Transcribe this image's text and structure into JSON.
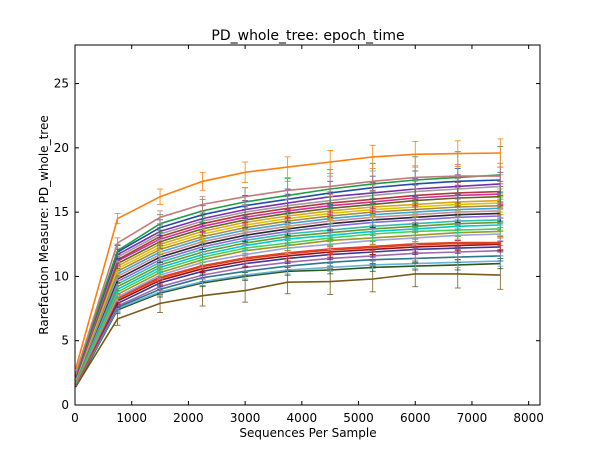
{
  "chart_data": {
    "type": "line",
    "title": "PD_whole_tree: epoch_time",
    "xlabel": "Sequences Per Sample",
    "ylabel": "Rarefaction Measure: PD_whole_tree",
    "xlim": [
      0,
      8200
    ],
    "ylim": [
      0,
      28
    ],
    "x_ticks": [
      0,
      1000,
      2000,
      3000,
      4000,
      5000,
      6000,
      7000,
      8000
    ],
    "y_ticks": [
      0,
      5,
      10,
      15,
      20,
      25
    ],
    "x_tick_labels": [
      "0",
      "1000",
      "2000",
      "3000",
      "4000",
      "5000",
      "6000",
      "7000",
      "8000"
    ],
    "y_tick_labels": [
      "0",
      "5",
      "10",
      "15",
      "20",
      "25"
    ],
    "grid": false,
    "legend": "none",
    "x": [
      10,
      750,
      1500,
      2250,
      3000,
      3750,
      4500,
      5250,
      6000,
      6750,
      7500
    ],
    "error_bars": true,
    "series": [
      {
        "color": "#ff7f0e",
        "width": 1.6,
        "values": [
          2.8,
          14.5,
          16.2,
          17.4,
          18.1,
          18.5,
          18.9,
          19.3,
          19.5,
          19.55,
          19.6
        ],
        "err": [
          0.3,
          0.4,
          0.6,
          0.7,
          0.8,
          0.8,
          0.9,
          0.9,
          1.0,
          1.0,
          1.1
        ]
      },
      {
        "color": "#c47a7a",
        "width": 1.6,
        "values": [
          2.4,
          12.6,
          14.6,
          15.6,
          16.2,
          16.7,
          17.0,
          17.4,
          17.7,
          17.8,
          17.8
        ],
        "err": [
          0.3,
          0.4,
          0.5,
          0.6,
          0.7,
          0.7,
          0.8,
          0.8,
          0.9,
          0.9,
          1.0
        ]
      },
      {
        "color": "#1f9e3f",
        "width": 1.6,
        "values": [
          2.3,
          12.0,
          14.1,
          15.1,
          15.8,
          16.3,
          16.8,
          17.2,
          17.5,
          17.7,
          17.9
        ],
        "err": [
          0.3,
          0.5,
          0.7,
          0.9,
          1.1,
          1.3,
          1.5,
          1.6,
          1.8,
          2.0,
          2.2
        ]
      },
      {
        "color": "#1f4ea8",
        "width": 1.6,
        "values": [
          2.3,
          11.9,
          13.8,
          14.8,
          15.5,
          16.0,
          16.5,
          16.9,
          17.2,
          17.4,
          17.5
        ],
        "err": [
          0.3,
          0.5,
          0.6,
          0.7,
          0.8,
          0.8,
          0.9,
          0.9,
          1.0,
          1.0,
          1.0
        ]
      },
      {
        "color": "#7a2fb0",
        "width": 1.6,
        "values": [
          2.2,
          11.7,
          13.5,
          14.5,
          15.2,
          15.7,
          16.2,
          16.5,
          16.8,
          17.0,
          17.2
        ],
        "err": [
          0.3,
          0.4,
          0.5,
          0.6,
          0.7,
          0.7,
          0.8,
          0.8,
          0.8,
          0.9,
          0.9
        ]
      },
      {
        "color": "#9e9e9e",
        "width": 1.6,
        "values": [
          2.2,
          11.5,
          13.3,
          14.3,
          15.0,
          15.5,
          15.9,
          16.3,
          16.6,
          16.8,
          17.0
        ],
        "err": [
          0.3,
          0.4,
          0.5,
          0.6,
          0.6,
          0.7,
          0.7,
          0.8,
          0.8,
          0.8,
          0.9
        ]
      },
      {
        "color": "#b03a3a",
        "width": 1.6,
        "values": [
          2.2,
          11.3,
          13.1,
          14.1,
          14.8,
          15.3,
          15.7,
          16.0,
          16.3,
          16.5,
          16.6
        ],
        "err": [
          0.3,
          0.4,
          0.5,
          0.6,
          0.6,
          0.7,
          0.7,
          0.7,
          0.8,
          0.8,
          0.8
        ]
      },
      {
        "color": "#d62ca0",
        "width": 1.6,
        "values": [
          2.1,
          11.2,
          12.9,
          13.9,
          14.6,
          15.1,
          15.5,
          15.8,
          16.1,
          16.3,
          16.4
        ],
        "err": [
          0.3,
          0.4,
          0.5,
          0.5,
          0.6,
          0.6,
          0.7,
          0.7,
          0.7,
          0.8,
          0.8
        ]
      },
      {
        "color": "#5a6a1a",
        "width": 1.6,
        "values": [
          2.1,
          11.0,
          12.7,
          13.7,
          14.4,
          14.9,
          15.3,
          15.6,
          15.9,
          16.1,
          16.2
        ],
        "err": [
          0.3,
          0.4,
          0.5,
          0.5,
          0.6,
          0.6,
          0.6,
          0.7,
          0.7,
          0.7,
          0.8
        ]
      },
      {
        "color": "#e0a020",
        "width": 1.6,
        "values": [
          2.1,
          10.8,
          12.5,
          13.5,
          14.2,
          14.7,
          15.1,
          15.4,
          15.6,
          15.8,
          15.9
        ],
        "err": [
          0.3,
          0.4,
          0.4,
          0.5,
          0.6,
          0.6,
          0.6,
          0.7,
          0.7,
          0.7,
          0.7
        ]
      },
      {
        "color": "#d9c600",
        "width": 1.6,
        "values": [
          2.0,
          10.6,
          12.3,
          13.3,
          14.0,
          14.5,
          14.9,
          15.2,
          15.4,
          15.6,
          15.7
        ],
        "err": [
          0.3,
          0.4,
          0.4,
          0.5,
          0.5,
          0.6,
          0.6,
          0.6,
          0.7,
          0.7,
          0.7
        ]
      },
      {
        "color": "#b08a3a",
        "width": 1.6,
        "values": [
          2.0,
          10.4,
          12.1,
          13.1,
          13.8,
          14.3,
          14.7,
          15.0,
          15.2,
          15.4,
          15.5
        ],
        "err": [
          0.3,
          0.4,
          0.4,
          0.5,
          0.5,
          0.6,
          0.6,
          0.6,
          0.6,
          0.7,
          0.7
        ]
      },
      {
        "color": "#3aa8d9",
        "width": 1.6,
        "values": [
          2.0,
          10.2,
          11.9,
          12.9,
          13.6,
          14.1,
          14.5,
          14.8,
          15.0,
          15.2,
          15.3
        ],
        "err": [
          0.3,
          0.3,
          0.4,
          0.5,
          0.5,
          0.5,
          0.6,
          0.6,
          0.6,
          0.6,
          0.7
        ]
      },
      {
        "color": "#c78a9e",
        "width": 1.6,
        "values": [
          1.9,
          10.0,
          11.7,
          12.7,
          13.4,
          13.9,
          14.3,
          14.6,
          14.8,
          15.0,
          15.1
        ],
        "err": [
          0.3,
          0.3,
          0.4,
          0.4,
          0.5,
          0.5,
          0.6,
          0.6,
          0.6,
          0.6,
          0.6
        ]
      },
      {
        "color": "#2a2a2a",
        "width": 1.6,
        "values": [
          1.9,
          9.8,
          11.5,
          12.5,
          13.2,
          13.7,
          14.1,
          14.4,
          14.6,
          14.8,
          14.9
        ],
        "err": [
          0.3,
          0.3,
          0.4,
          0.4,
          0.5,
          0.5,
          0.5,
          0.6,
          0.6,
          0.6,
          0.6
        ]
      },
      {
        "color": "#8a6ad9",
        "width": 1.6,
        "values": [
          1.9,
          9.6,
          11.3,
          12.3,
          13.0,
          13.5,
          13.9,
          14.2,
          14.4,
          14.6,
          14.7
        ],
        "err": [
          0.3,
          0.3,
          0.4,
          0.4,
          0.5,
          0.5,
          0.5,
          0.5,
          0.6,
          0.6,
          0.6
        ]
      },
      {
        "color": "#2fc0b0",
        "width": 1.6,
        "values": [
          1.8,
          9.4,
          11.1,
          12.1,
          12.8,
          13.3,
          13.6,
          13.9,
          14.1,
          14.3,
          14.4
        ],
        "err": [
          0.3,
          0.3,
          0.4,
          0.4,
          0.4,
          0.5,
          0.5,
          0.5,
          0.5,
          0.6,
          0.6
        ]
      },
      {
        "color": "#6a9a2a",
        "width": 1.6,
        "values": [
          1.8,
          9.2,
          10.9,
          11.9,
          12.6,
          13.1,
          13.4,
          13.7,
          13.9,
          14.1,
          14.2
        ],
        "err": [
          0.3,
          0.3,
          0.4,
          0.4,
          0.4,
          0.5,
          0.5,
          0.5,
          0.5,
          0.5,
          0.6
        ]
      },
      {
        "color": "#00c8d0",
        "width": 1.6,
        "values": [
          1.8,
          9.0,
          10.7,
          11.7,
          12.4,
          12.9,
          13.2,
          13.5,
          13.7,
          13.9,
          14.0
        ],
        "err": [
          0.3,
          0.3,
          0.4,
          0.4,
          0.4,
          0.4,
          0.5,
          0.5,
          0.5,
          0.5,
          0.5
        ]
      },
      {
        "color": "#44d060",
        "width": 1.6,
        "values": [
          1.7,
          8.8,
          10.5,
          11.5,
          12.2,
          12.6,
          13.0,
          13.3,
          13.5,
          13.6,
          13.7
        ],
        "err": [
          0.3,
          0.3,
          0.3,
          0.4,
          0.4,
          0.4,
          0.5,
          0.5,
          0.5,
          0.5,
          0.5
        ]
      },
      {
        "color": "#9a9a20",
        "width": 1.6,
        "values": [
          1.7,
          8.6,
          10.3,
          11.3,
          12.0,
          12.4,
          12.8,
          13.0,
          13.2,
          13.4,
          13.5
        ],
        "err": [
          0.3,
          0.3,
          0.3,
          0.4,
          0.4,
          0.4,
          0.4,
          0.5,
          0.5,
          0.5,
          0.5
        ]
      },
      {
        "color": "#a0a0e0",
        "width": 1.6,
        "values": [
          1.7,
          8.4,
          10.1,
          11.1,
          11.7,
          12.2,
          12.5,
          12.8,
          13.0,
          13.2,
          13.3
        ],
        "err": [
          0.3,
          0.3,
          0.3,
          0.4,
          0.4,
          0.4,
          0.4,
          0.4,
          0.5,
          0.5,
          0.5
        ]
      },
      {
        "color": "#e04020",
        "width": 2.6,
        "values": [
          1.6,
          8.3,
          9.9,
          10.8,
          11.4,
          11.8,
          12.1,
          12.3,
          12.5,
          12.6,
          12.6
        ],
        "err": [
          0.3,
          0.3,
          0.3,
          0.3,
          0.4,
          0.4,
          0.4,
          0.4,
          0.4,
          0.5,
          0.5
        ]
      },
      {
        "color": "#a01010",
        "width": 1.6,
        "values": [
          1.6,
          8.1,
          9.7,
          10.6,
          11.2,
          11.6,
          11.9,
          12.1,
          12.3,
          12.4,
          12.5
        ],
        "err": [
          0.3,
          0.3,
          0.3,
          0.3,
          0.4,
          0.4,
          0.4,
          0.4,
          0.4,
          0.4,
          0.5
        ]
      },
      {
        "color": "#3a3a9a",
        "width": 1.6,
        "values": [
          1.6,
          7.9,
          9.5,
          10.4,
          11.0,
          11.4,
          11.7,
          11.9,
          12.1,
          12.2,
          12.3
        ],
        "err": [
          0.3,
          0.3,
          0.3,
          0.3,
          0.3,
          0.4,
          0.4,
          0.4,
          0.4,
          0.4,
          0.4
        ]
      },
      {
        "color": "#a06ab0",
        "width": 1.6,
        "values": [
          1.5,
          7.7,
          9.2,
          10.1,
          10.7,
          11.1,
          11.4,
          11.6,
          11.8,
          11.9,
          12.0
        ],
        "err": [
          0.3,
          0.3,
          0.3,
          0.3,
          0.3,
          0.3,
          0.4,
          0.4,
          0.4,
          0.4,
          0.4
        ]
      },
      {
        "color": "#2a7a8a",
        "width": 1.6,
        "values": [
          1.5,
          7.6,
          9.0,
          9.9,
          10.4,
          10.8,
          11.1,
          11.3,
          11.4,
          11.5,
          11.6
        ],
        "err": [
          0.3,
          0.3,
          0.3,
          0.3,
          0.3,
          0.3,
          0.3,
          0.4,
          0.4,
          0.4,
          0.4
        ]
      },
      {
        "color": "#6ab0e0",
        "width": 1.6,
        "values": [
          1.5,
          7.5,
          8.8,
          9.6,
          10.1,
          10.5,
          10.7,
          10.9,
          11.0,
          11.1,
          11.2
        ],
        "err": [
          0.3,
          0.3,
          0.3,
          0.3,
          0.3,
          0.3,
          0.3,
          0.3,
          0.4,
          0.4,
          0.4
        ]
      },
      {
        "color": "#2a5a1a",
        "width": 1.6,
        "values": [
          1.4,
          7.4,
          8.7,
          9.5,
          10.0,
          10.4,
          10.5,
          10.7,
          10.8,
          10.9,
          11.0
        ],
        "err": [
          0.3,
          0.3,
          0.3,
          0.3,
          0.3,
          0.3,
          0.3,
          0.3,
          0.3,
          0.4,
          0.4
        ]
      },
      {
        "color": "#7a5a1a",
        "width": 1.6,
        "values": [
          1.4,
          6.7,
          7.9,
          8.5,
          8.9,
          9.55,
          9.6,
          9.8,
          10.2,
          10.2,
          10.1
        ],
        "err": [
          0.3,
          0.5,
          0.7,
          0.8,
          0.9,
          0.9,
          1.0,
          1.0,
          1.0,
          1.1,
          1.1
        ]
      }
    ]
  }
}
